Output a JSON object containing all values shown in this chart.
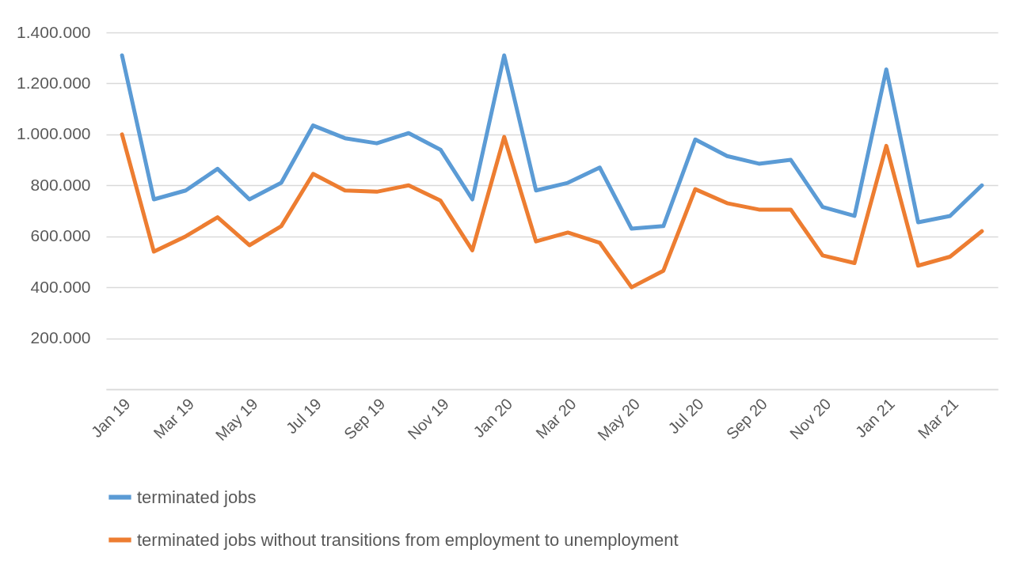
{
  "chart_data": {
    "type": "line",
    "categories": [
      "Jan 19",
      null,
      "Mar 19",
      null,
      "May 19",
      null,
      "Jul 19",
      null,
      "Sep 19",
      null,
      "Nov 19",
      null,
      "Jan 20",
      null,
      "Mar 20",
      null,
      "May 20",
      null,
      "Jul 20",
      null,
      "Sep 20",
      null,
      "Nov 20",
      null,
      "Jan 21",
      null,
      "Mar 21",
      null
    ],
    "series": [
      {
        "name": "terminated jobs",
        "color": "#5b9bd5",
        "values": [
          1310000,
          745000,
          780000,
          865000,
          745000,
          810000,
          1035000,
          985000,
          965000,
          1005000,
          940000,
          745000,
          1310000,
          780000,
          810000,
          870000,
          630000,
          640000,
          980000,
          915000,
          885000,
          900000,
          715000,
          680000,
          1255000,
          655000,
          680000,
          800000
        ]
      },
      {
        "name": "terminated jobs without transitions from employment to unemployment",
        "color": "#ed7d31",
        "values": [
          1000000,
          540000,
          600000,
          675000,
          565000,
          640000,
          845000,
          780000,
          775000,
          800000,
          740000,
          545000,
          990000,
          580000,
          615000,
          575000,
          400000,
          465000,
          785000,
          730000,
          705000,
          705000,
          525000,
          495000,
          955000,
          485000,
          520000,
          620000
        ]
      }
    ],
    "ylim": [
      0,
      1400000
    ],
    "yticks": [
      {
        "value": 0,
        "label": null
      },
      {
        "value": 200000,
        "label": "200.000"
      },
      {
        "value": 400000,
        "label": "400.000"
      },
      {
        "value": 600000,
        "label": "600.000"
      },
      {
        "value": 800000,
        "label": "800.000"
      },
      {
        "value": 1000000,
        "label": "1.000.000"
      },
      {
        "value": 1200000,
        "label": "1.200.000"
      },
      {
        "value": 1400000,
        "label": "1.400.000"
      }
    ],
    "grid": "y",
    "legend": "bottom",
    "marker": "none",
    "line_style": "solid"
  }
}
